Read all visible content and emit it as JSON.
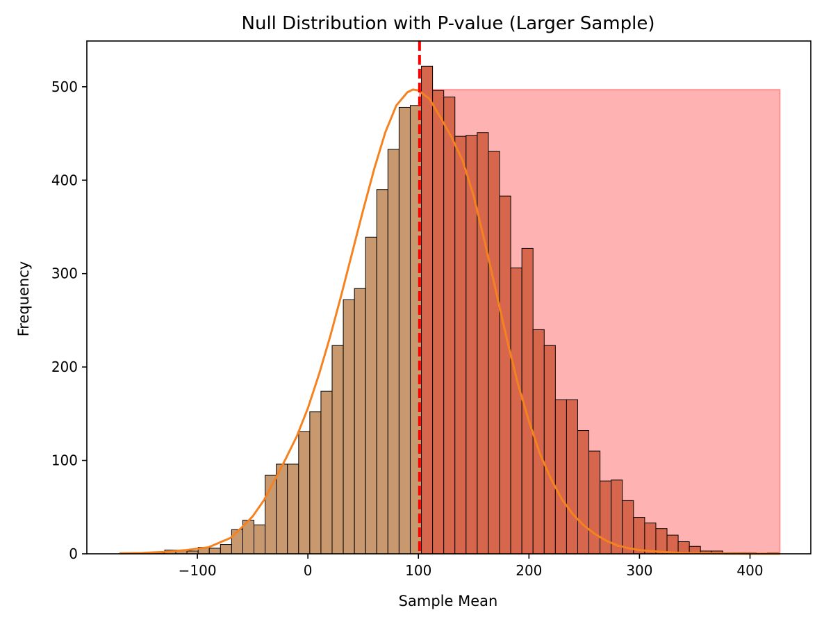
{
  "chart_data": {
    "type": "bar",
    "title": "Null Distribution with P-value (Larger Sample)",
    "xlabel": "Sample Mean",
    "ylabel": "Frequency",
    "xlim": [
      -200,
      455
    ],
    "ylim": [
      0,
      549
    ],
    "xticks": [
      -100,
      0,
      100,
      200,
      300,
      400
    ],
    "xtick_labels": [
      "−100",
      "0",
      "100",
      "200",
      "300",
      "400"
    ],
    "yticks": [
      0,
      100,
      200,
      300,
      400,
      500
    ],
    "ytick_labels": [
      "0",
      "100",
      "200",
      "300",
      "400",
      "500"
    ],
    "grid": false,
    "observed_value": 101,
    "p_value_region": {
      "x_start": 101,
      "x_end": 427,
      "height": 497,
      "color": "#ff0000"
    },
    "histogram": {
      "bin_width": 10.1,
      "bin_starts": [
        -170,
        -159.9,
        -149.8,
        -139.7,
        -129.6,
        -119.5,
        -109.4,
        -99.3,
        -89.2,
        -79.1,
        -69.0,
        -58.9,
        -48.8,
        -38.7,
        -28.6,
        -18.5,
        -8.4,
        1.7,
        11.8,
        21.9,
        32.0,
        42.1,
        52.2,
        62.3,
        72.4,
        82.5,
        92.6,
        102.7,
        112.8,
        122.9,
        133.0,
        143.1,
        153.2,
        163.3,
        173.4,
        183.5,
        193.6,
        203.7,
        213.8,
        223.9,
        234.0,
        244.1,
        254.2,
        264.3,
        274.4,
        284.5,
        294.6,
        304.7,
        314.8,
        324.9,
        335.0,
        345.1,
        355.2,
        365.3,
        375.4,
        385.5,
        395.6,
        405.7,
        415.8
      ],
      "counts": [
        1,
        0,
        1,
        1,
        4,
        4,
        3,
        7,
        6,
        10,
        26,
        36,
        31,
        84,
        96,
        96,
        131,
        152,
        174,
        223,
        272,
        284,
        339,
        390,
        433,
        478,
        480,
        522,
        496,
        489,
        447,
        448,
        451,
        431,
        383,
        306,
        327,
        240,
        223,
        165,
        165,
        132,
        110,
        78,
        79,
        57,
        39,
        33,
        27,
        20,
        13,
        8,
        3,
        3,
        1,
        1,
        1,
        0,
        1
      ],
      "left_color": "#c8996f",
      "right_color": "#d7674c"
    },
    "kde": {
      "color": "#f58220",
      "x": [
        -170,
        -150,
        -130,
        -110,
        -90,
        -70,
        -60,
        -50,
        -40,
        -30,
        -20,
        -10,
        0,
        10,
        20,
        30,
        40,
        50,
        60,
        70,
        80,
        90,
        95,
        100,
        110,
        120,
        130,
        140,
        150,
        160,
        170,
        180,
        190,
        200,
        210,
        220,
        230,
        240,
        250,
        260,
        270,
        280,
        290,
        300,
        320,
        340,
        360,
        380,
        400,
        427
      ],
      "y": [
        0.5,
        1,
        2,
        4,
        7,
        17,
        28,
        40,
        57,
        79,
        102,
        126,
        156,
        192,
        232,
        276,
        322,
        368,
        412,
        451,
        480,
        494,
        497,
        496,
        487,
        467,
        446,
        421,
        383,
        334,
        282,
        230,
        182,
        142,
        107,
        80,
        58,
        42,
        30,
        21,
        14,
        9,
        6,
        4,
        2,
        1,
        0.5,
        0.2,
        0.1,
        0.05
      ]
    }
  }
}
